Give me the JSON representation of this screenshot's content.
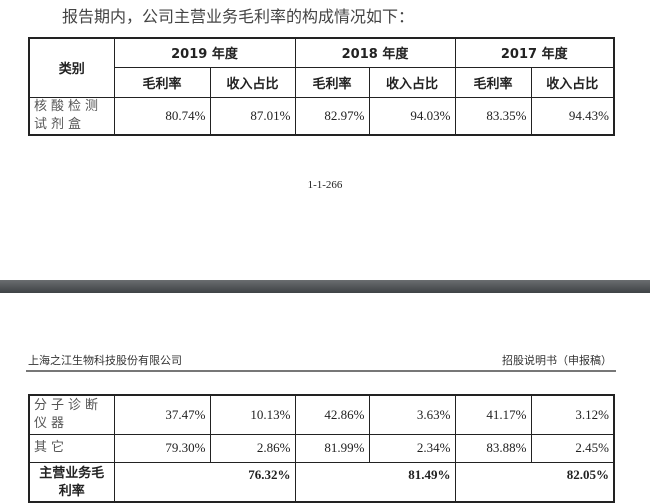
{
  "intro": "报告期内，公司主营业务毛利率的构成情况如下：",
  "table": {
    "category_header": "类别",
    "years": [
      "2019 年度",
      "2018 年度",
      "2017 年度"
    ],
    "sub_headers": [
      "毛利率",
      "收入占比"
    ],
    "rows": [
      {
        "category": "核酸检测试剂盒",
        "values": [
          "80.74%",
          "87.01%",
          "82.97%",
          "94.03%",
          "83.35%",
          "94.43%"
        ]
      },
      {
        "category": "分子诊断仪器",
        "values": [
          "37.47%",
          "10.13%",
          "42.86%",
          "3.63%",
          "41.17%",
          "3.12%"
        ]
      },
      {
        "category": "其它",
        "values": [
          "79.30%",
          "2.86%",
          "81.99%",
          "2.34%",
          "83.88%",
          "2.45%"
        ]
      }
    ],
    "total": {
      "category": "主营业务毛利率",
      "values": [
        "76.32%",
        "81.49%",
        "82.05%"
      ]
    }
  },
  "page_number": "1-1-266",
  "page_header": {
    "company": "上海之江生物科技股份有限公司",
    "doc": "招股说明书（申报稿）"
  }
}
